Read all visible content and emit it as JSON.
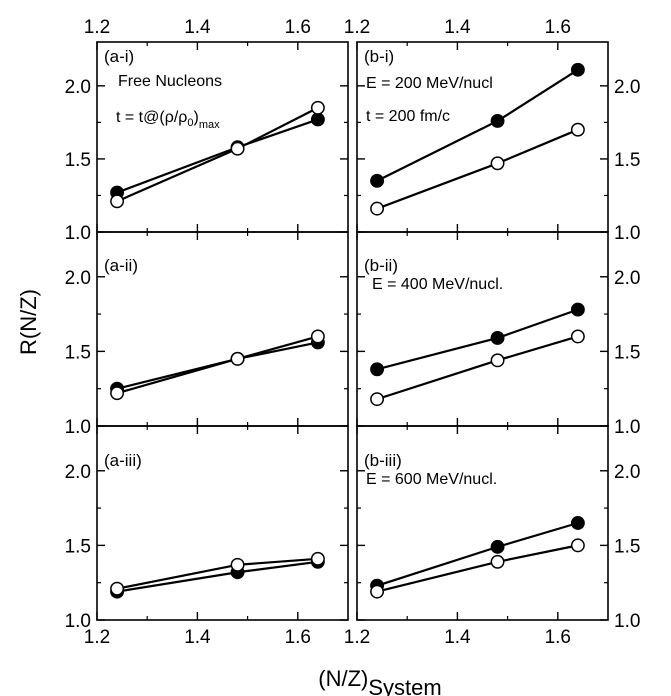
{
  "chart_data": {
    "type": "line",
    "layout": "3 rows x 2 columns of panels, shared x axis",
    "ylabel": "R(N/Z)",
    "xlabel_main": "(N/Z)",
    "xlabel_sub": "System",
    "xlim": [
      1.2,
      1.7
    ],
    "xticks": [
      "1.2",
      "1.4",
      "1.6"
    ],
    "ylim": [
      1.0,
      2.3
    ],
    "yticks": [
      "1.0",
      "1.5",
      "2.0"
    ],
    "marker_styles": [
      "filled circle",
      "open circle"
    ],
    "x": [
      1.24,
      1.48,
      1.64
    ],
    "panels": [
      {
        "label": "(a-i)",
        "annotations": [],
        "series": [
          {
            "marker": "filled",
            "values": [
              1.27,
              1.58,
              1.77
            ]
          },
          {
            "marker": "open",
            "values": [
              1.21,
              1.57,
              1.85
            ]
          }
        ]
      },
      {
        "label": "(b-i)",
        "annotations": [
          "E = 200 MeV/nucl",
          "t = 200 fm/c"
        ],
        "series": [
          {
            "marker": "filled",
            "values": [
              1.35,
              1.76,
              2.11
            ]
          },
          {
            "marker": "open",
            "values": [
              1.16,
              1.47,
              1.7
            ]
          }
        ]
      },
      {
        "label": "(a-ii)",
        "annotations": [],
        "series": [
          {
            "marker": "filled",
            "values": [
              1.25,
              1.45,
              1.56
            ]
          },
          {
            "marker": "open",
            "values": [
              1.22,
              1.45,
              1.6
            ]
          }
        ]
      },
      {
        "label": "(b-ii)",
        "annotations": [
          "E = 400 MeV/nucl."
        ],
        "series": [
          {
            "marker": "filled",
            "values": [
              1.38,
              1.59,
              1.78
            ]
          },
          {
            "marker": "open",
            "values": [
              1.18,
              1.44,
              1.6
            ]
          }
        ]
      },
      {
        "label": "(a-iii)",
        "annotations": [],
        "series": [
          {
            "marker": "filled",
            "values": [
              1.19,
              1.32,
              1.39
            ]
          },
          {
            "marker": "open",
            "values": [
              1.21,
              1.37,
              1.41
            ]
          }
        ]
      },
      {
        "label": "(b-iii)",
        "annotations": [
          "E = 600 MeV/nucl."
        ],
        "series": [
          {
            "marker": "filled",
            "values": [
              1.23,
              1.49,
              1.65
            ]
          },
          {
            "marker": "open",
            "values": [
              1.19,
              1.39,
              1.5
            ]
          }
        ]
      }
    ],
    "free_nucleons_label": "Free Nucleons",
    "time_label": {
      "prefix": "t = t@(",
      "rho": "ρ",
      "slash": "/",
      "rho0_base": "ρ",
      "rho0_sub": "0",
      "close": ")",
      "sub_max": "max"
    }
  }
}
